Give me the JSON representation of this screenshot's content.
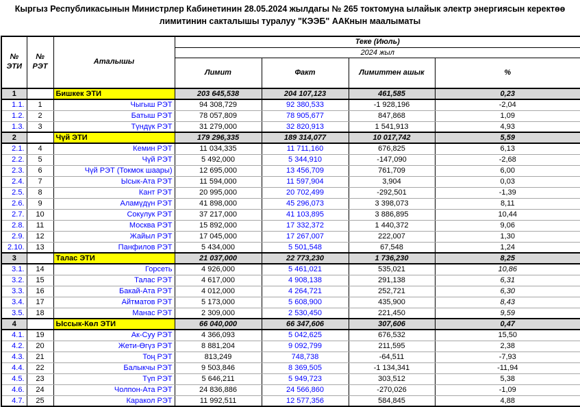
{
  "title": {
    "text": "Кыргыз Республикасынын Министрлер Кабинетинин 28.05.2024 жылдагы № 265 токтомуна ылайык электр энергиясын керектөө лимитинин сакталышы туралуу \"КЭЭБ\" ААКнын маалыматы"
  },
  "colors": {
    "section_bg": "#d9d9d9",
    "highlight_bg": "#ffff00",
    "link_blue": "#0000ff"
  },
  "table": {
    "headers": {
      "col_eti": "№\nЭТИ",
      "col_ret": "№\nРЭТ",
      "col_name": "Аталышы",
      "period": "Теке (Июль)",
      "year": "2024 жыл",
      "limit": "Лимит",
      "fact": "Факт",
      "over": "Лимиттен ашык",
      "percent": "%"
    },
    "rows": [
      {
        "type": "section",
        "no": "1",
        "ret": "",
        "name": "Бишкек ЭТИ",
        "limit": "203 645,538",
        "fact": "204 107,123",
        "over": "461,585",
        "pct": "0,23"
      },
      {
        "type": "sub",
        "no": "1.1.",
        "ret": "1",
        "name": "Чыгыш РЭТ",
        "limit": "94 308,729",
        "fact": "92 380,533",
        "over": "-1 928,196",
        "pct": "-2,04"
      },
      {
        "type": "sub",
        "no": "1.2.",
        "ret": "2",
        "name": "Батыш РЭТ",
        "limit": "78 057,809",
        "fact": "78 905,677",
        "over": "847,868",
        "pct": "1,09"
      },
      {
        "type": "sub",
        "no": "1.3.",
        "ret": "3",
        "name": "Түндүк РЭТ",
        "limit": "31 279,000",
        "fact": "32 820,913",
        "over": "1 541,913",
        "pct": "4,93"
      },
      {
        "type": "section",
        "no": "2",
        "ret": "",
        "name": "Чүй ЭТИ",
        "limit": "179 296,335",
        "fact": "189 314,077",
        "over": "10 017,742",
        "pct": "5,59"
      },
      {
        "type": "sub",
        "no": "2.1.",
        "ret": "4",
        "name": "Кемин РЭТ",
        "limit": "11 034,335",
        "fact": "11 711,160",
        "over": "676,825",
        "pct": "6,13"
      },
      {
        "type": "sub",
        "no": "2.2.",
        "ret": "5",
        "name": "Чүй РЭТ",
        "limit": "5 492,000",
        "fact": "5 344,910",
        "over": "-147,090",
        "pct": "-2,68"
      },
      {
        "type": "sub",
        "no": "2.3.",
        "ret": "6",
        "name": "Чүй РЭТ (Токмок шаары)",
        "limit": "12 695,000",
        "fact": "13 456,709",
        "over": "761,709",
        "pct": "6,00"
      },
      {
        "type": "sub",
        "no": "2.4.",
        "ret": "7",
        "name": "Ысык-Ата РЭТ",
        "limit": "11 594,000",
        "fact": "11 597,904",
        "over": "3,904",
        "pct": "0,03"
      },
      {
        "type": "sub",
        "no": "2.5.",
        "ret": "8",
        "name": "Кант РЭТ",
        "limit": "20 995,000",
        "fact": "20 702,499",
        "over": "-292,501",
        "pct": "-1,39"
      },
      {
        "type": "sub",
        "no": "2.6.",
        "ret": "9",
        "name": "Аламүдүн РЭТ",
        "limit": "41 898,000",
        "fact": "45 296,073",
        "over": "3 398,073",
        "pct": "8,11"
      },
      {
        "type": "sub",
        "no": "2.7.",
        "ret": "10",
        "name": "Сокулук РЭТ",
        "limit": "37 217,000",
        "fact": "41 103,895",
        "over": "3 886,895",
        "pct": "10,44"
      },
      {
        "type": "sub",
        "no": "2.8.",
        "ret": "11",
        "name": "Москва РЭТ",
        "limit": "15 892,000",
        "fact": "17 332,372",
        "over": "1 440,372",
        "pct": "9,06"
      },
      {
        "type": "sub",
        "no": "2.9.",
        "ret": "12",
        "name": "Жайыл РЭТ",
        "limit": "17 045,000",
        "fact": "17 267,007",
        "over": "222,007",
        "pct": "1,30"
      },
      {
        "type": "sub",
        "no": "2.10.",
        "ret": "13",
        "name": "Панфилов РЭТ",
        "limit": "5 434,000",
        "fact": "5 501,548",
        "over": "67,548",
        "pct": "1,24"
      },
      {
        "type": "section",
        "no": "3",
        "ret": "",
        "name": "Талас ЭТИ",
        "limit": "21 037,000",
        "fact": "22 773,230",
        "over": "1 736,230",
        "pct": "8,25"
      },
      {
        "type": "sub",
        "no": "3.1.",
        "ret": "14",
        "name": "Горсеть",
        "limit": "4 926,000",
        "fact": "5 461,021",
        "over": "535,021",
        "pct": "10,86",
        "pct_italic": true
      },
      {
        "type": "sub",
        "no": "3.2.",
        "ret": "15",
        "name": "Талас РЭТ",
        "limit": "4 617,000",
        "fact": "4 908,138",
        "over": "291,138",
        "pct": "6,31",
        "pct_italic": true
      },
      {
        "type": "sub",
        "no": "3.3.",
        "ret": "16",
        "name": "Бакай-Ата РЭТ",
        "limit": "4 012,000",
        "fact": "4 264,721",
        "over": "252,721",
        "pct": "6,30",
        "pct_italic": true
      },
      {
        "type": "sub",
        "no": "3.4.",
        "ret": "17",
        "name": "Айтматов РЭТ",
        "limit": "5 173,000",
        "fact": "5 608,900",
        "over": "435,900",
        "pct": "8,43",
        "pct_italic": true
      },
      {
        "type": "sub",
        "no": "3.5.",
        "ret": "18",
        "name": "Манас РЭТ",
        "limit": "2 309,000",
        "fact": "2 530,450",
        "over": "221,450",
        "pct": "9,59",
        "pct_italic": true
      },
      {
        "type": "section",
        "no": "4",
        "ret": "",
        "name": "Ыссык-Көл ЭТИ",
        "limit": "66 040,000",
        "fact": "66 347,606",
        "over": "307,606",
        "pct": "0,47"
      },
      {
        "type": "sub",
        "no": "4.1.",
        "ret": "19",
        "name": "Ак-Суу РЭТ",
        "limit": "4 366,093",
        "fact": "5 042,625",
        "over": "676,532",
        "pct": "15,50"
      },
      {
        "type": "sub",
        "no": "4.2.",
        "ret": "20",
        "name": "Жети-Өгүз РЭТ",
        "limit": "8 881,204",
        "fact": "9 092,799",
        "over": "211,595",
        "pct": "2,38"
      },
      {
        "type": "sub",
        "no": "4.3.",
        "ret": "21",
        "name": "Тоң РЭТ",
        "limit": "813,249",
        "fact": "748,738",
        "over": "-64,511",
        "pct": "-7,93"
      },
      {
        "type": "sub",
        "no": "4.4.",
        "ret": "22",
        "name": "Балыкчы РЭТ",
        "limit": "9 503,846",
        "fact": "8 369,505",
        "over": "-1 134,341",
        "pct": "-11,94"
      },
      {
        "type": "sub",
        "no": "4.5.",
        "ret": "23",
        "name": "Түп РЭТ",
        "limit": "5 646,211",
        "fact": "5 949,723",
        "over": "303,512",
        "pct": "5,38"
      },
      {
        "type": "sub",
        "no": "4.6.",
        "ret": "24",
        "name": "Чолпон-Ата РЭТ",
        "limit": "24 836,886",
        "fact": "24 566,860",
        "over": "-270,026",
        "pct": "-1,09"
      },
      {
        "type": "sub",
        "no": "4.7.",
        "ret": "25",
        "name": "Каракол РЭТ",
        "limit": "11 992,511",
        "fact": "12 577,356",
        "over": "584,845",
        "pct": "4,88"
      }
    ]
  }
}
